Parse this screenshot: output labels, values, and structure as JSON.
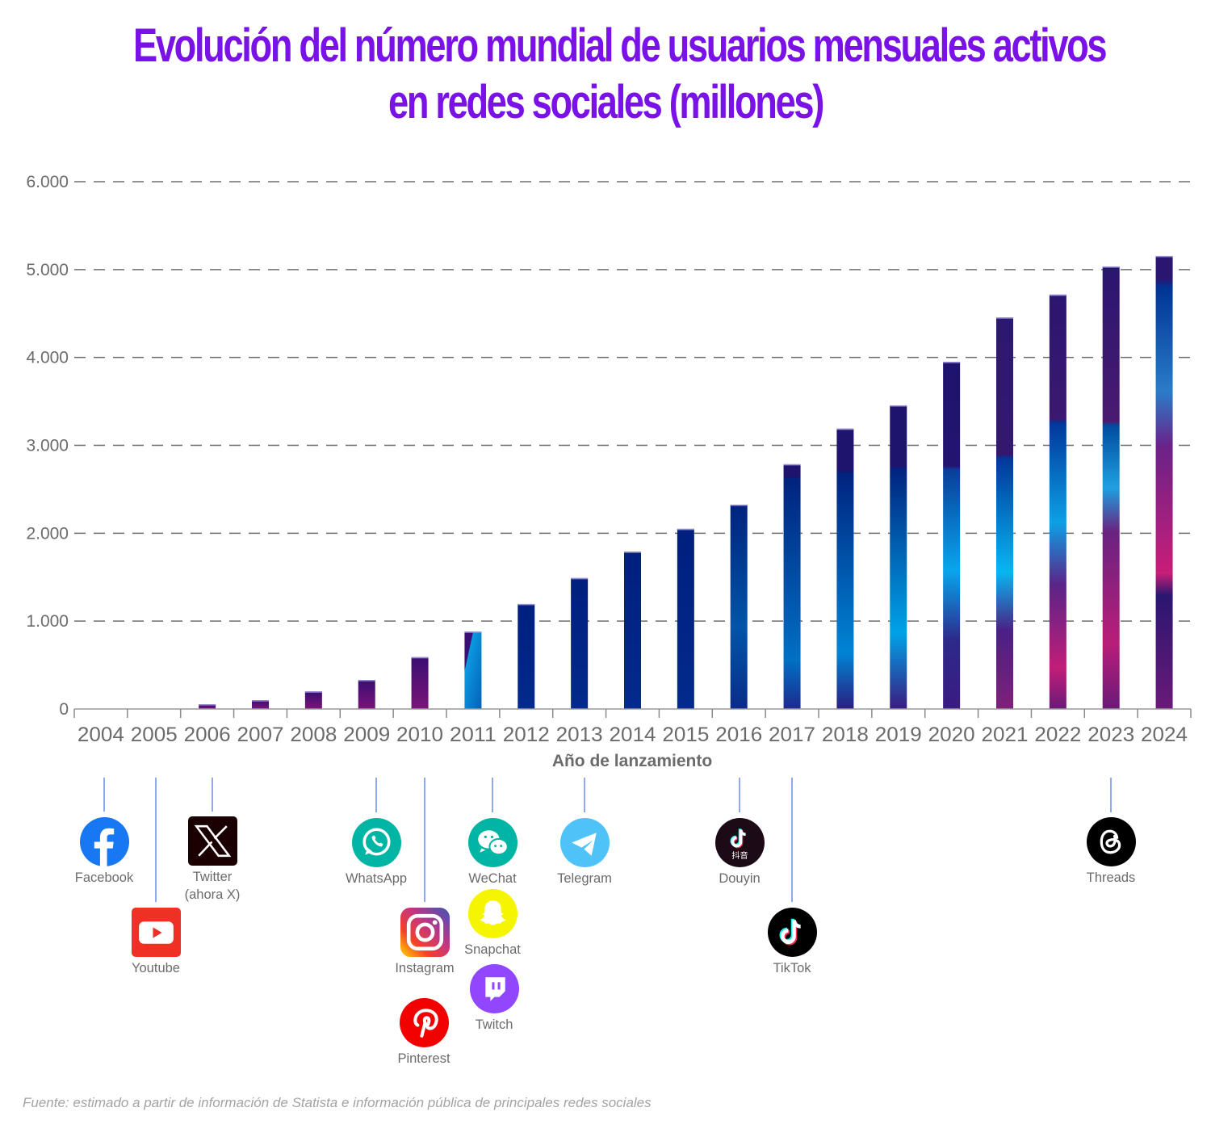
{
  "title": {
    "line1": "Evolución del número mundial de usuarios mensuales activos",
    "line2": "en redes sociales (millones)"
  },
  "chart_data": {
    "type": "bar",
    "title": "Evolución del número mundial de usuarios mensuales activos en redes sociales (millones)",
    "xlabel": "Año de lanzamiento",
    "ylabel": "",
    "categories": [
      "2004",
      "2005",
      "2006",
      "2007",
      "2008",
      "2009",
      "2010",
      "2011",
      "2012",
      "2013",
      "2014",
      "2015",
      "2016",
      "2017",
      "2018",
      "2019",
      "2020",
      "2021",
      "2022",
      "2023",
      "2024"
    ],
    "values": [
      0,
      0,
      55,
      100,
      200,
      330,
      590,
      880,
      1195,
      1490,
      1790,
      2050,
      2325,
      2785,
      3190,
      3455,
      3950,
      4455,
      4715,
      5035,
      5155
    ],
    "ylim": [
      0,
      6000
    ],
    "yticks": [
      0,
      1000,
      2000,
      3000,
      4000,
      5000,
      6000
    ],
    "ytick_labels": [
      "0",
      "1.000",
      "2.000",
      "3.000",
      "4.000",
      "5.000",
      "6.000"
    ],
    "grid": true,
    "grid_style": "dashed",
    "legend": "none"
  },
  "launches": [
    {
      "name": "Facebook",
      "year": "2004",
      "icon": "facebook-icon",
      "color": "#1877f2"
    },
    {
      "name": "Youtube",
      "year": "2005",
      "icon": "youtube-icon",
      "color": "#ee3124"
    },
    {
      "name": "Twitter\n(ahora X)",
      "name_line1": "Twitter",
      "name_line2": "(ahora X)",
      "year": "2006",
      "icon": "x-twitter-icon",
      "color": "#1a0000"
    },
    {
      "name": "WhatsApp",
      "year": "2009",
      "icon": "whatsapp-icon",
      "color": "#00b5a3"
    },
    {
      "name": "Instagram",
      "year": "2010",
      "icon": "instagram-icon",
      "color": "#c13584"
    },
    {
      "name": "Pinterest",
      "year": "2010",
      "icon": "pinterest-icon",
      "color": "#f20000"
    },
    {
      "name": "WeChat",
      "year": "2011",
      "icon": "wechat-icon",
      "color": "#00b5a3"
    },
    {
      "name": "Snapchat",
      "year": "2011",
      "icon": "snapchat-icon",
      "color": "#f5f500"
    },
    {
      "name": "Twitch",
      "year": "2011",
      "icon": "twitch-icon",
      "color": "#9146ff"
    },
    {
      "name": "Telegram",
      "year": "2013",
      "icon": "telegram-icon",
      "color": "#4fc3f7"
    },
    {
      "name": "Douyin",
      "year": "2016",
      "icon": "douyin-icon",
      "color": "#1c0b16",
      "badge_text": "抖音"
    },
    {
      "name": "TikTok",
      "year": "2017",
      "icon": "tiktok-icon",
      "color": "#000000"
    },
    {
      "name": "Threads",
      "year": "2023",
      "icon": "threads-icon",
      "color": "#000000"
    }
  ],
  "source": "Fuente: estimado a partir de información de Statista e información pública de principales redes sociales",
  "colors": {
    "title": "#7a12e8",
    "axis_text": "#6b6b6b",
    "stem": "#8fa8ee",
    "bar_purple": "#3b0f73",
    "bar_navy": "#001f7f",
    "bar_cyan": "#06b0ee",
    "bar_magenta": "#c81e78"
  }
}
